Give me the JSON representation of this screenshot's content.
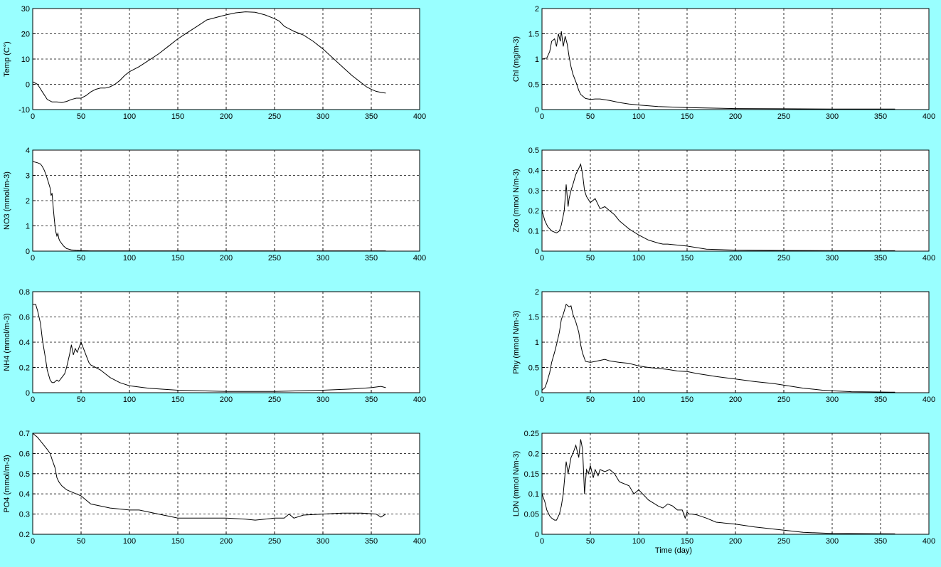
{
  "figure": {
    "background": "#99ffff",
    "plot_background": "#ffffff",
    "line_color": "#000000",
    "grid": "dashed"
  },
  "chart_data": [
    {
      "type": "line",
      "id": "temp",
      "ylabel": "Temp (C°)",
      "xlabel": "",
      "xlim": [
        0,
        400
      ],
      "ylim": [
        -10,
        30
      ],
      "xticks": [
        0,
        50,
        100,
        150,
        200,
        250,
        300,
        350,
        400
      ],
      "yticks": [
        -10,
        0,
        10,
        20,
        30
      ],
      "ytick_labels": [
        "-10",
        "0",
        "10",
        "20",
        "30"
      ],
      "x": [
        0,
        5,
        10,
        15,
        20,
        25,
        30,
        35,
        40,
        45,
        50,
        55,
        60,
        65,
        70,
        75,
        80,
        85,
        90,
        95,
        100,
        110,
        120,
        130,
        140,
        150,
        160,
        170,
        180,
        190,
        200,
        210,
        220,
        230,
        240,
        250,
        255,
        260,
        265,
        270,
        280,
        290,
        300,
        310,
        320,
        330,
        340,
        345,
        350,
        355,
        360,
        365
      ],
      "y": [
        1,
        0,
        -3,
        -6,
        -7,
        -7,
        -7.2,
        -6.8,
        -6,
        -5.5,
        -5.5,
        -4.5,
        -3,
        -2,
        -1.5,
        -1.5,
        -1,
        0,
        1.5,
        3.5,
        5,
        7,
        9.5,
        12,
        15,
        18,
        20.5,
        23,
        25.5,
        26.5,
        27.5,
        28.3,
        28.7,
        28.5,
        27.5,
        26,
        25,
        23,
        22,
        21,
        19.5,
        17,
        14,
        10.5,
        7,
        3.5,
        0.5,
        -1,
        -2,
        -2.8,
        -3.2,
        -3.5
      ]
    },
    {
      "type": "line",
      "id": "chl",
      "ylabel": "Chl (mg/m-3)",
      "xlabel": "",
      "xlim": [
        0,
        400
      ],
      "ylim": [
        0,
        2
      ],
      "xticks": [
        0,
        50,
        100,
        150,
        200,
        250,
        300,
        350,
        400
      ],
      "yticks": [
        0,
        0.5,
        1,
        1.5,
        2
      ],
      "ytick_labels": [
        "0",
        "0.5",
        "1",
        "1.5",
        "2"
      ],
      "x": [
        0,
        5,
        8,
        10,
        13,
        15,
        17,
        19,
        20,
        22,
        24,
        26,
        28,
        30,
        32,
        35,
        38,
        40,
        45,
        50,
        55,
        60,
        70,
        80,
        90,
        100,
        120,
        150,
        200,
        250,
        300,
        365
      ],
      "y": [
        1,
        1.02,
        1.15,
        1.35,
        1.4,
        1.25,
        1.5,
        1.35,
        1.55,
        1.25,
        1.45,
        1.3,
        1.05,
        0.85,
        0.7,
        0.55,
        0.38,
        0.3,
        0.22,
        0.2,
        0.21,
        0.21,
        0.18,
        0.14,
        0.11,
        0.09,
        0.06,
        0.04,
        0.02,
        0.015,
        0.01,
        0.01
      ]
    },
    {
      "type": "line",
      "id": "no3",
      "ylabel": "NO3 (mmol/m-3)",
      "xlabel": "",
      "xlim": [
        0,
        400
      ],
      "ylim": [
        0,
        4
      ],
      "xticks": [
        0,
        50,
        100,
        150,
        200,
        250,
        300,
        350,
        400
      ],
      "yticks": [
        0,
        1,
        2,
        3,
        4
      ],
      "ytick_labels": [
        "0",
        "1",
        "2",
        "3",
        "4"
      ],
      "x": [
        0,
        5,
        8,
        10,
        12,
        14,
        16,
        18,
        19,
        20,
        21,
        22,
        23,
        24,
        25,
        26,
        27,
        28,
        30,
        32,
        35,
        40,
        45,
        50,
        60,
        100,
        200,
        300,
        365
      ],
      "y": [
        3.55,
        3.5,
        3.45,
        3.35,
        3.2,
        3.0,
        2.75,
        2.5,
        2.2,
        2.3,
        1.8,
        1.4,
        1.0,
        0.75,
        0.6,
        0.7,
        0.5,
        0.4,
        0.3,
        0.2,
        0.1,
        0.05,
        0.03,
        0.02,
        0.01,
        0.01,
        0.01,
        0.01,
        0.01
      ]
    },
    {
      "type": "line",
      "id": "zoo",
      "ylabel": "Zoo (mmol N/m-3)",
      "xlabel": "",
      "xlim": [
        0,
        400
      ],
      "ylim": [
        0,
        0.5
      ],
      "xticks": [
        0,
        50,
        100,
        150,
        200,
        250,
        300,
        350,
        400
      ],
      "yticks": [
        0,
        0.1,
        0.2,
        0.3,
        0.4,
        0.5
      ],
      "ytick_labels": [
        "0",
        "0.1",
        "0.2",
        "0.3",
        "0.4",
        "0.5"
      ],
      "x": [
        0,
        3,
        6,
        10,
        15,
        18,
        20,
        23,
        25,
        27,
        28,
        30,
        32,
        35,
        38,
        40,
        42,
        44,
        46,
        50,
        55,
        58,
        60,
        65,
        70,
        75,
        80,
        85,
        90,
        100,
        110,
        120,
        125,
        130,
        140,
        150,
        170,
        200,
        250,
        300,
        365
      ],
      "y": [
        0.2,
        0.15,
        0.12,
        0.1,
        0.09,
        0.1,
        0.13,
        0.2,
        0.33,
        0.22,
        0.26,
        0.3,
        0.33,
        0.38,
        0.41,
        0.43,
        0.38,
        0.3,
        0.27,
        0.24,
        0.26,
        0.23,
        0.21,
        0.22,
        0.2,
        0.18,
        0.15,
        0.13,
        0.11,
        0.08,
        0.055,
        0.04,
        0.035,
        0.035,
        0.03,
        0.025,
        0.01,
        0.005,
        0.003,
        0.002,
        0.002
      ]
    },
    {
      "type": "line",
      "id": "nh4",
      "ylabel": "NH4 (mmol/m-3)",
      "xlabel": "",
      "xlim": [
        0,
        400
      ],
      "ylim": [
        0,
        0.8
      ],
      "xticks": [
        0,
        50,
        100,
        150,
        200,
        250,
        300,
        350,
        400
      ],
      "yticks": [
        0,
        0.2,
        0.4,
        0.6,
        0.8
      ],
      "ytick_labels": [
        "0",
        "0.2",
        "0.4",
        "0.6",
        "0.8"
      ],
      "x": [
        0,
        3,
        5,
        8,
        10,
        13,
        15,
        18,
        20,
        22,
        25,
        27,
        30,
        33,
        35,
        38,
        40,
        42,
        44,
        46,
        48,
        50,
        52,
        55,
        58,
        60,
        65,
        70,
        75,
        80,
        90,
        100,
        120,
        150,
        200,
        250,
        300,
        330,
        350,
        355,
        360,
        365
      ],
      "y": [
        0.7,
        0.7,
        0.65,
        0.55,
        0.42,
        0.28,
        0.18,
        0.1,
        0.08,
        0.08,
        0.1,
        0.09,
        0.12,
        0.15,
        0.2,
        0.3,
        0.38,
        0.3,
        0.35,
        0.32,
        0.36,
        0.4,
        0.36,
        0.3,
        0.24,
        0.22,
        0.2,
        0.18,
        0.15,
        0.12,
        0.08,
        0.055,
        0.035,
        0.02,
        0.01,
        0.01,
        0.02,
        0.03,
        0.04,
        0.045,
        0.05,
        0.04
      ]
    },
    {
      "type": "line",
      "id": "phy",
      "ylabel": "Phy (mmol N/m-3)",
      "xlabel": "",
      "xlim": [
        0,
        400
      ],
      "ylim": [
        0,
        2
      ],
      "xticks": [
        0,
        50,
        100,
        150,
        200,
        250,
        300,
        350,
        400
      ],
      "yticks": [
        0,
        0.5,
        1,
        1.5,
        2
      ],
      "ytick_labels": [
        "0",
        "0.5",
        "1",
        "1.5",
        "2"
      ],
      "x": [
        0,
        3,
        5,
        8,
        10,
        13,
        15,
        18,
        20,
        22,
        25,
        28,
        30,
        32,
        35,
        38,
        40,
        42,
        45,
        50,
        55,
        60,
        65,
        70,
        80,
        90,
        100,
        110,
        120,
        130,
        140,
        150,
        160,
        180,
        200,
        220,
        240,
        250,
        260,
        270,
        280,
        290,
        300,
        320,
        340,
        360,
        365
      ],
      "y": [
        0.05,
        0.1,
        0.2,
        0.4,
        0.6,
        0.8,
        0.95,
        1.2,
        1.45,
        1.55,
        1.75,
        1.7,
        1.72,
        1.55,
        1.4,
        1.2,
        0.95,
        0.78,
        0.62,
        0.6,
        0.62,
        0.64,
        0.66,
        0.63,
        0.6,
        0.58,
        0.53,
        0.5,
        0.48,
        0.46,
        0.43,
        0.42,
        0.38,
        0.32,
        0.27,
        0.22,
        0.18,
        0.15,
        0.12,
        0.09,
        0.07,
        0.05,
        0.04,
        0.02,
        0.015,
        0.01,
        0.01
      ]
    },
    {
      "type": "line",
      "id": "po4",
      "ylabel": "PO4 (mmol/m-3)",
      "xlabel": "",
      "xlim": [
        0,
        400
      ],
      "ylim": [
        0.2,
        0.7
      ],
      "xticks": [
        0,
        50,
        100,
        150,
        200,
        250,
        300,
        350,
        400
      ],
      "yticks": [
        0.2,
        0.3,
        0.4,
        0.5,
        0.6,
        0.7
      ],
      "ytick_labels": [
        "0.2",
        "0.3",
        "0.4",
        "0.5",
        "0.6",
        "0.7"
      ],
      "x": [
        0,
        5,
        10,
        15,
        18,
        20,
        23,
        25,
        27,
        30,
        35,
        40,
        45,
        50,
        55,
        60,
        70,
        80,
        90,
        100,
        110,
        120,
        130,
        140,
        150,
        160,
        180,
        200,
        220,
        230,
        240,
        250,
        260,
        265,
        270,
        280,
        300,
        320,
        340,
        355,
        360,
        365
      ],
      "y": [
        0.7,
        0.68,
        0.65,
        0.62,
        0.6,
        0.57,
        0.53,
        0.48,
        0.46,
        0.44,
        0.42,
        0.41,
        0.4,
        0.39,
        0.37,
        0.35,
        0.34,
        0.33,
        0.325,
        0.32,
        0.32,
        0.31,
        0.3,
        0.29,
        0.28,
        0.28,
        0.28,
        0.28,
        0.275,
        0.27,
        0.275,
        0.28,
        0.28,
        0.3,
        0.28,
        0.295,
        0.3,
        0.305,
        0.305,
        0.3,
        0.285,
        0.3
      ]
    },
    {
      "type": "line",
      "id": "ldn",
      "ylabel": "LDN (mmol N/m-3)",
      "xlabel": "Time (day)",
      "xlim": [
        0,
        400
      ],
      "ylim": [
        0,
        0.25
      ],
      "xticks": [
        0,
        50,
        100,
        150,
        200,
        250,
        300,
        350,
        400
      ],
      "yticks": [
        0,
        0.05,
        0.1,
        0.15,
        0.2,
        0.25
      ],
      "ytick_labels": [
        "0",
        "0.05",
        "0.1",
        "0.15",
        "0.2",
        "0.25"
      ],
      "x": [
        0,
        3,
        5,
        8,
        10,
        13,
        15,
        18,
        20,
        22,
        25,
        27,
        30,
        32,
        35,
        38,
        40,
        42,
        44,
        46,
        48,
        50,
        53,
        55,
        58,
        60,
        65,
        70,
        75,
        80,
        90,
        95,
        100,
        110,
        120,
        125,
        130,
        135,
        140,
        145,
        148,
        150,
        152,
        155,
        160,
        170,
        180,
        200,
        220,
        250,
        270,
        300,
        365
      ],
      "y": [
        0.1,
        0.08,
        0.06,
        0.045,
        0.04,
        0.035,
        0.035,
        0.05,
        0.07,
        0.1,
        0.18,
        0.15,
        0.19,
        0.2,
        0.22,
        0.19,
        0.235,
        0.21,
        0.1,
        0.16,
        0.15,
        0.17,
        0.14,
        0.16,
        0.145,
        0.16,
        0.155,
        0.16,
        0.15,
        0.13,
        0.12,
        0.1,
        0.11,
        0.085,
        0.07,
        0.065,
        0.075,
        0.07,
        0.06,
        0.06,
        0.04,
        0.055,
        0.05,
        0.05,
        0.048,
        0.04,
        0.03,
        0.025,
        0.018,
        0.01,
        0.005,
        0.002,
        0.001
      ]
    }
  ]
}
